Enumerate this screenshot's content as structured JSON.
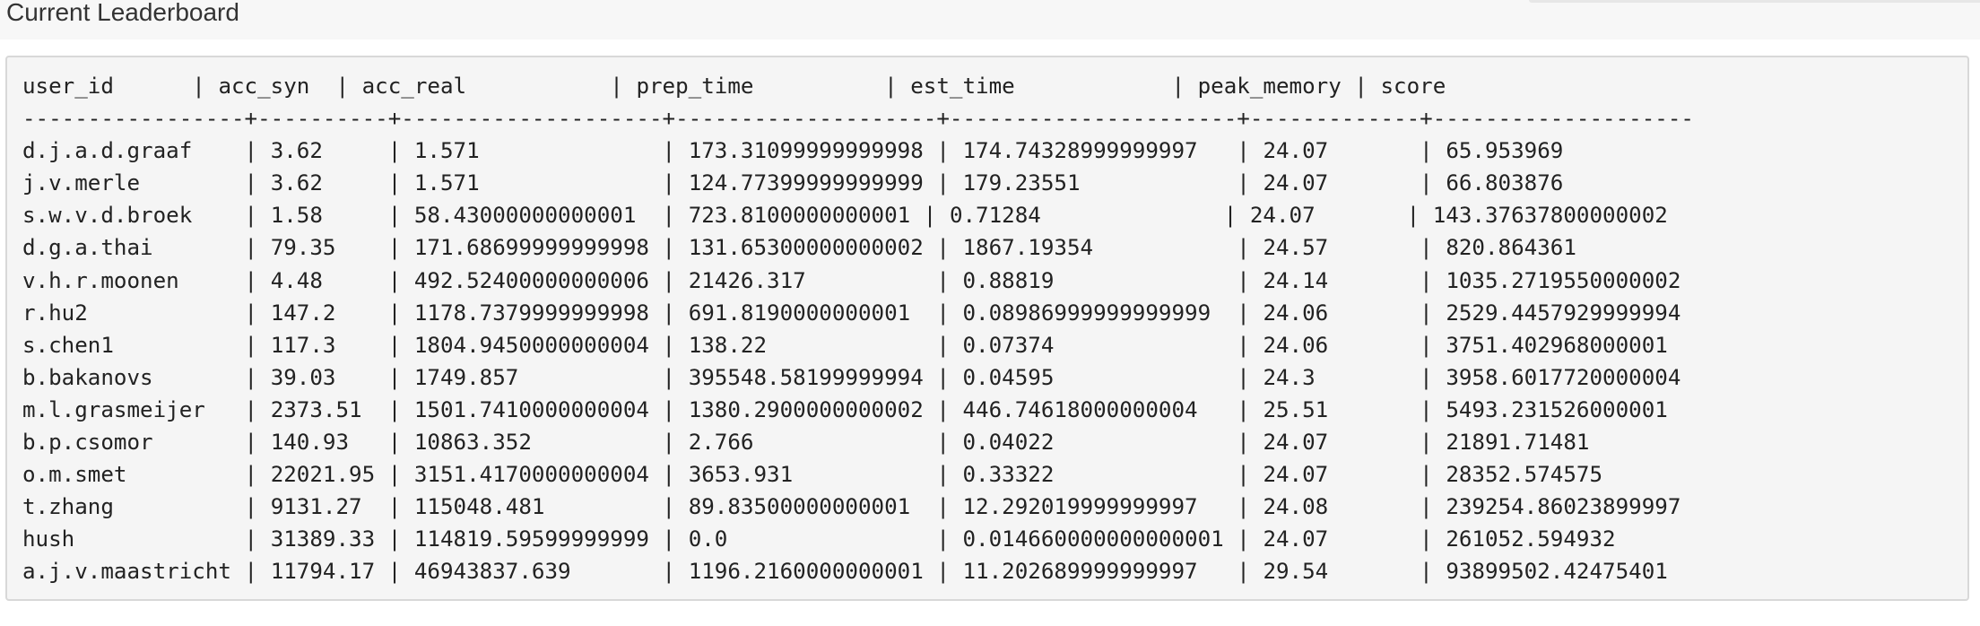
{
  "page_title": "Current Leaderboard",
  "leaderboard": {
    "columns": [
      "user_id",
      "acc_syn",
      "acc_real",
      "prep_time",
      "est_time",
      "peak_memory",
      "score"
    ],
    "rows": [
      [
        "d.j.a.d.graaf",
        "3.62",
        "1.571",
        "173.31099999999998",
        "174.74328999999997",
        "24.07",
        "65.953969"
      ],
      [
        "j.v.merle",
        "3.62",
        "1.571",
        "124.77399999999999",
        "179.23551",
        "24.07",
        "66.803876"
      ],
      [
        "s.w.v.d.broek",
        "1.58",
        "58.43000000000001",
        "723.8100000000001",
        "0.71284",
        "24.07",
        "143.37637800000002"
      ],
      [
        "d.g.a.thai",
        "79.35",
        "171.68699999999998",
        "131.65300000000002",
        "1867.19354",
        "24.57",
        "820.864361"
      ],
      [
        "v.h.r.moonen",
        "4.48",
        "492.52400000000006",
        "21426.317",
        "0.88819",
        "24.14",
        "1035.2719550000002"
      ],
      [
        "r.hu2",
        "147.2",
        "1178.7379999999998",
        "691.8190000000001",
        "0.08986999999999999",
        "24.06",
        "2529.4457929999994"
      ],
      [
        "s.chen1",
        "117.3",
        "1804.9450000000004",
        "138.22",
        "0.07374",
        "24.06",
        "3751.402968000001"
      ],
      [
        "b.bakanovs",
        "39.03",
        "1749.857",
        "395548.58199999994",
        "0.04595",
        "24.3",
        "3958.6017720000004"
      ],
      [
        "m.l.grasmeijer",
        "2373.51",
        "1501.7410000000004",
        "1380.2900000000002",
        "446.74618000000004",
        "25.51",
        "5493.231526000001"
      ],
      [
        "b.p.csomor",
        "140.93",
        "10863.352",
        "2.766",
        "0.04022",
        "24.07",
        "21891.71481"
      ],
      [
        "o.m.smet",
        "22021.95",
        "3151.4170000000004",
        "3653.931",
        "0.33322",
        "24.07",
        "28352.574575"
      ],
      [
        "t.zhang",
        "9131.27",
        "115048.481",
        "89.83500000000001",
        "12.292019999999997",
        "24.08",
        "239254.86023899997"
      ],
      [
        "hush",
        "31389.33",
        "114819.59599999999",
        "0.0",
        "0.014660000000000001",
        "24.07",
        "261052.594932"
      ],
      [
        "a.j.v.maastricht",
        "11794.17",
        "46943837.639",
        "1196.2160000000001",
        "11.202689999999997",
        "29.54",
        "93899502.42475401"
      ]
    ]
  }
}
